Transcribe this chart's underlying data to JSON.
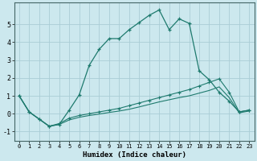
{
  "xlabel": "Humidex (Indice chaleur)",
  "bg_color": "#cce8ee",
  "grid_color": "#aacdd6",
  "line_color": "#1e7a6e",
  "xlim": [
    -0.5,
    23.5
  ],
  "ylim": [
    -1.5,
    6.2
  ],
  "yticks": [
    -1,
    0,
    1,
    2,
    3,
    4,
    5
  ],
  "xticks": [
    0,
    1,
    2,
    3,
    4,
    5,
    6,
    7,
    8,
    9,
    10,
    11,
    12,
    13,
    14,
    15,
    16,
    17,
    18,
    19,
    20,
    21,
    22,
    23
  ],
  "s1_x": [
    0,
    1,
    2,
    3,
    4,
    5,
    6,
    7,
    8,
    9,
    10,
    11,
    12,
    13,
    14,
    15,
    16,
    17,
    18,
    19,
    20,
    21,
    22,
    23
  ],
  "s1_y": [
    1.0,
    0.1,
    -0.3,
    -0.7,
    -0.6,
    0.2,
    1.05,
    2.7,
    3.6,
    4.2,
    4.2,
    4.7,
    5.1,
    5.5,
    5.8,
    4.7,
    5.3,
    5.05,
    2.4,
    1.9,
    1.2,
    0.7,
    0.1,
    0.2
  ],
  "s2_x": [
    0,
    1,
    2,
    3,
    4,
    5,
    6,
    7,
    8,
    9,
    10,
    11,
    12,
    13,
    14,
    15,
    16,
    17,
    18,
    19,
    20,
    21,
    22,
    23
  ],
  "s2_y": [
    1.0,
    0.1,
    -0.3,
    -0.7,
    -0.55,
    -0.25,
    -0.1,
    0.0,
    0.1,
    0.2,
    0.3,
    0.45,
    0.6,
    0.75,
    0.9,
    1.05,
    1.2,
    1.35,
    1.55,
    1.75,
    1.95,
    1.2,
    0.1,
    0.2
  ],
  "s3_x": [
    0,
    1,
    2,
    3,
    4,
    5,
    6,
    7,
    8,
    9,
    10,
    11,
    12,
    13,
    14,
    15,
    16,
    17,
    18,
    19,
    20,
    21,
    22,
    23
  ],
  "s3_y": [
    1.0,
    0.1,
    -0.3,
    -0.7,
    -0.6,
    -0.35,
    -0.2,
    -0.1,
    -0.02,
    0.07,
    0.15,
    0.25,
    0.38,
    0.52,
    0.66,
    0.78,
    0.9,
    1.0,
    1.15,
    1.3,
    1.5,
    0.9,
    0.05,
    0.15
  ]
}
